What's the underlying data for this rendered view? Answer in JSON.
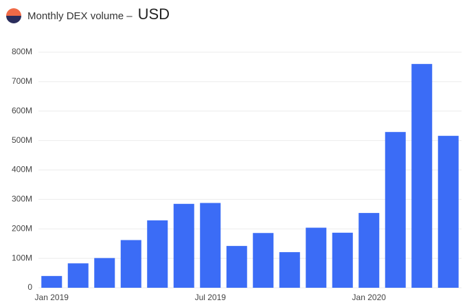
{
  "chart_data": {
    "type": "bar",
    "title": "Monthly DEX volume –",
    "unit": "USD",
    "categories": [
      "Jan 2019",
      null,
      null,
      null,
      null,
      null,
      "Jul 2019",
      null,
      null,
      null,
      null,
      null,
      "Jan 2020",
      null,
      null,
      null
    ],
    "values": [
      40000000,
      83000000,
      101000000,
      162000000,
      229000000,
      285000000,
      288000000,
      142000000,
      186000000,
      121000000,
      204000000,
      187000000,
      254000000,
      529000000,
      760000000,
      516000000
    ],
    "color": "#3b6cf6",
    "ylim": [
      0,
      800000000
    ],
    "yticks": [
      0,
      {
        "value": 100000000,
        "label": "100M"
      },
      {
        "value": 200000000,
        "label": "200M"
      },
      {
        "value": 300000000,
        "label": "300M"
      },
      {
        "value": 400000000,
        "label": "400M"
      },
      {
        "value": 500000000,
        "label": "500M"
      },
      {
        "value": 600000000,
        "label": "600M"
      },
      {
        "value": 700000000,
        "label": "700M"
      },
      {
        "value": 800000000,
        "label": "800M"
      }
    ],
    "grid": true
  }
}
